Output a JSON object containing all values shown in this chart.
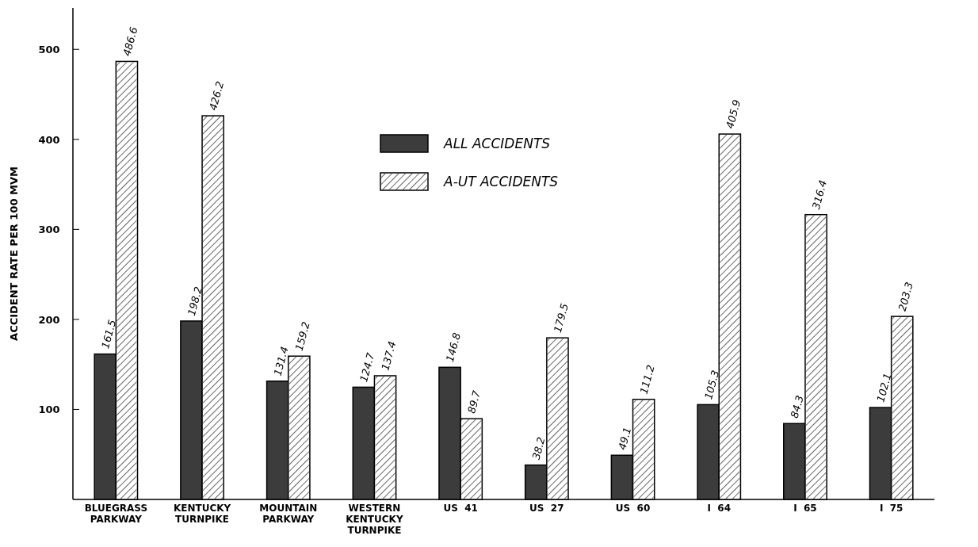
{
  "chart_data": {
    "type": "bar",
    "ylabel": "ACCIDENT RATE PER 100 MVM",
    "categories": [
      "BLUEGRASS\nPARKWAY",
      "KENTUCKY\nTURNPIKE",
      "MOUNTAIN\nPARKWAY",
      "WESTERN\nKENTUCKY\nTURNPIKE",
      "US  41",
      "US  27",
      "US  60",
      "I  64",
      "I  65",
      "I  75"
    ],
    "series": [
      {
        "name": "ALL ACCIDENTS",
        "color": "#3c3c3c",
        "values": [
          161.5,
          198.2,
          131.4,
          124.7,
          146.8,
          38.2,
          49.1,
          105.3,
          84.3,
          102.1
        ]
      },
      {
        "name": "A-UT ACCIDENTS",
        "color": "#ffffff",
        "values": [
          486.6,
          426.2,
          159.2,
          137.4,
          89.7,
          179.5,
          111.2,
          405.9,
          316.4,
          203.3
        ]
      }
    ],
    "ylim": [
      0,
      546
    ],
    "yticks": [
      100,
      200,
      300,
      400,
      500
    ],
    "grid": false,
    "legend": "top",
    "data_labels": true
  }
}
